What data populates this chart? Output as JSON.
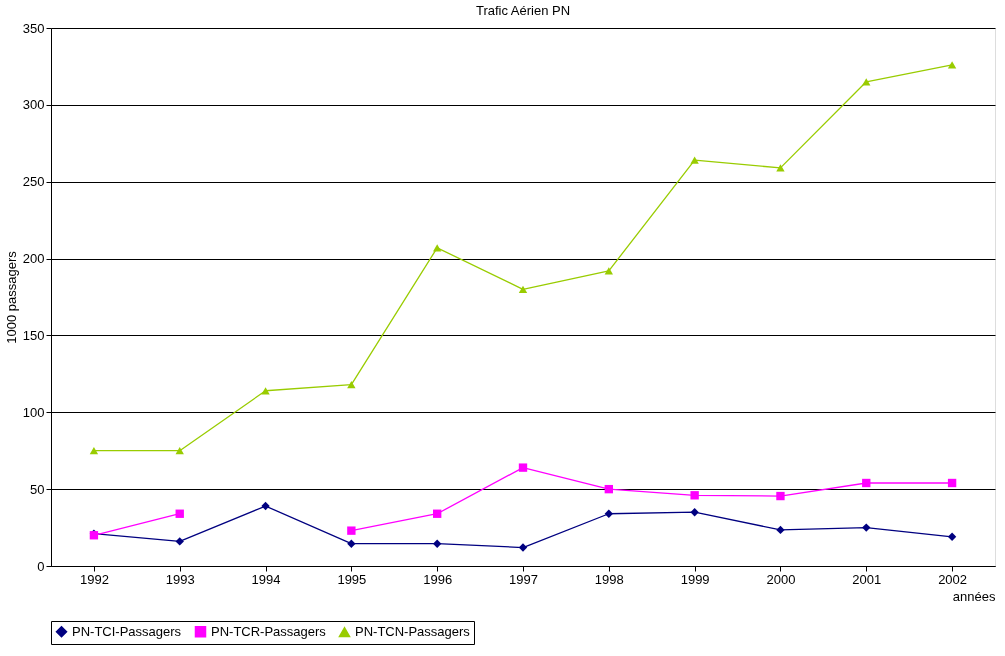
{
  "chart_data": {
    "type": "line",
    "title": "Trafic Aérien PN",
    "xlabel": "années",
    "ylabel": "1000 passagers",
    "categories": [
      "1992",
      "1993",
      "1994",
      "1995",
      "1996",
      "1997",
      "1998",
      "1999",
      "2000",
      "2001",
      "2002"
    ],
    "series": [
      {
        "name": "PN-TCI-Passagers",
        "color": "#000080",
        "marker": "diamond",
        "values": [
          21,
          16,
          39,
          14.5,
          14.5,
          12,
          34,
          35,
          23.5,
          25,
          19
        ]
      },
      {
        "name": "PN-TCR-Passagers",
        "color": "#ff00ff",
        "marker": "square",
        "values": [
          20,
          34,
          null,
          23,
          34,
          64,
          50,
          46,
          45.5,
          54,
          54
        ]
      },
      {
        "name": "PN-TCN-Passagers",
        "color": "#99cc00",
        "marker": "triangle",
        "values": [
          75,
          75,
          114,
          118,
          207,
          180,
          192,
          264,
          259,
          315,
          326
        ]
      }
    ],
    "ylim": [
      0,
      350
    ],
    "yticks": [
      0,
      50,
      100,
      150,
      200,
      250,
      300,
      350
    ],
    "grid": "y",
    "legend": "bottom",
    "line_style": "solid"
  }
}
